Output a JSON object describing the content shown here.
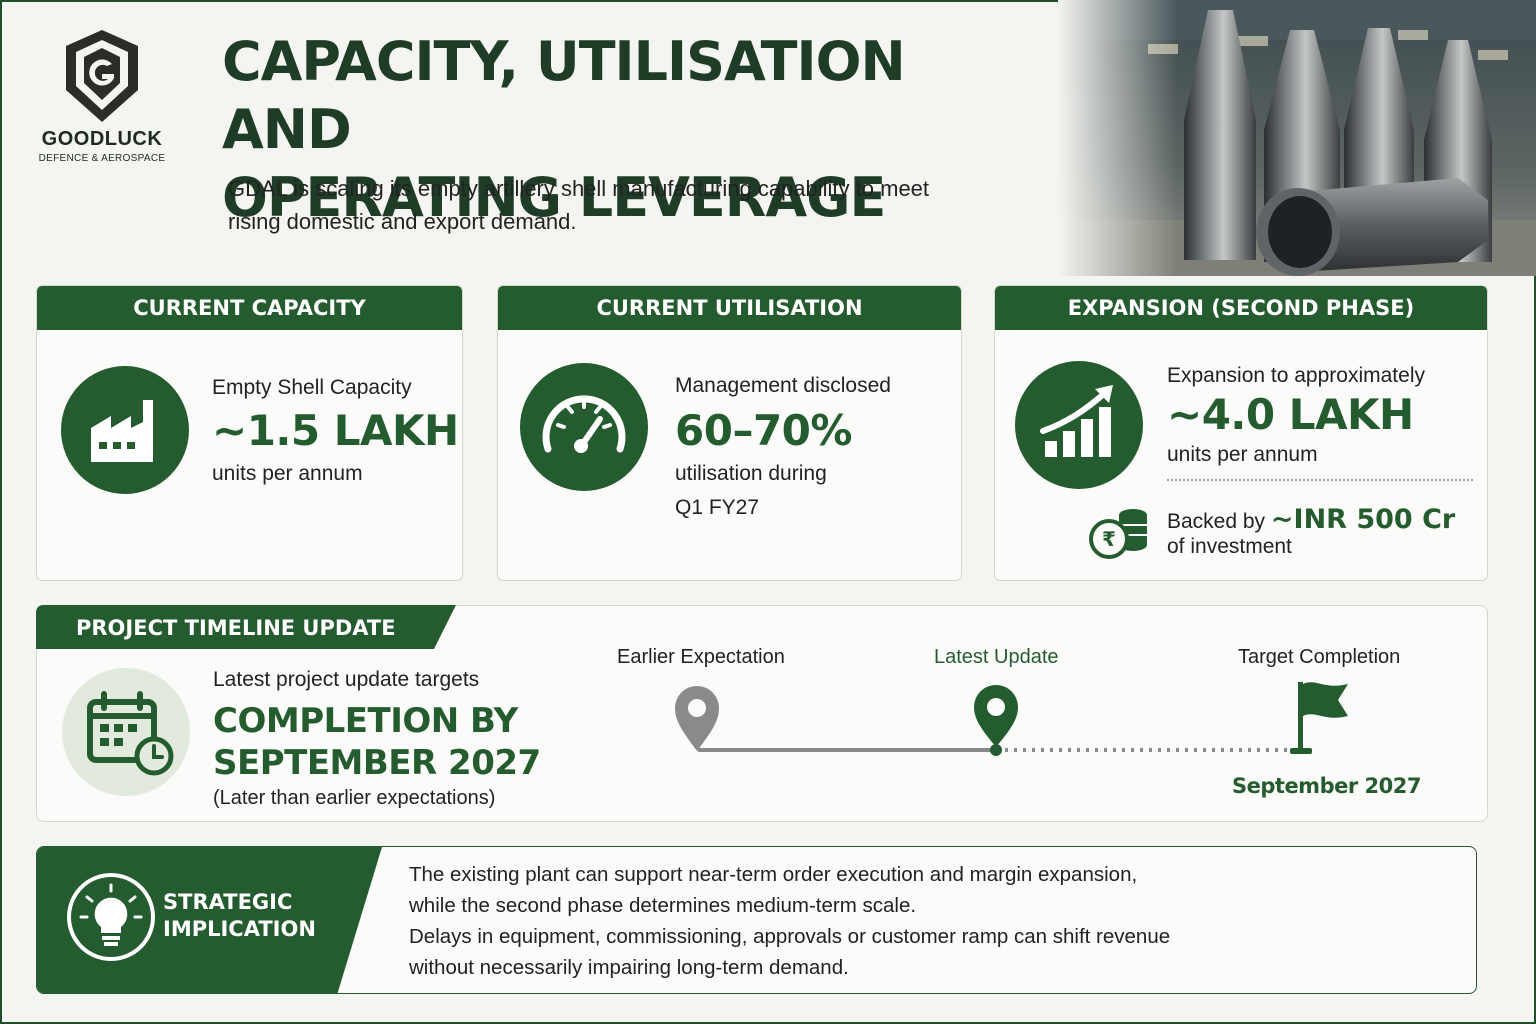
{
  "brand": {
    "name": "GOODLUCK",
    "tagline": "DEFENCE & AEROSPACE",
    "icon": "shield-g-logo"
  },
  "header": {
    "title_line1": "CAPACITY, UTILISATION AND",
    "title_line2": "OPERATING LEVERAGE",
    "intro_line1": "GDAL is scaling its empty artillery shell manufacturing capability to meet",
    "intro_line2": "rising domestic and export demand."
  },
  "cards": {
    "capacity": {
      "title": "CURRENT CAPACITY",
      "icon": "factory-icon",
      "label": "Empty Shell Capacity",
      "value": "~1.5 LAKH",
      "unit": "units per annum"
    },
    "utilisation": {
      "title": "CURRENT UTILISATION",
      "icon": "gauge-icon",
      "label": "Management disclosed",
      "value": "60–70%",
      "detail_line1": "utilisation during",
      "detail_line2": "Q1 FY27"
    },
    "expansion": {
      "title": "EXPANSION (SECOND PHASE)",
      "icon": "growth-chart-icon",
      "label": "Expansion to approximately",
      "value": "~4.0 LAKH",
      "unit": "units per annum",
      "backed_prefix": "Backed by ",
      "backed_value": "~INR 500 Cr",
      "backed_suffix": "of investment",
      "investment_icon": "rupee-coins-icon"
    }
  },
  "timeline": {
    "title": "PROJECT TIMELINE UPDATE",
    "icon": "calendar-clock-icon",
    "label": "Latest project update targets",
    "headline_line1": "COMPLETION BY",
    "headline_line2": "SEPTEMBER 2027",
    "note": "(Later than earlier expectations)",
    "milestones": [
      {
        "label": "Earlier Expectation",
        "icon": "location-pin-grey-icon"
      },
      {
        "label": "Latest Update",
        "icon": "location-pin-green-icon"
      },
      {
        "label": "Target Completion",
        "icon": "flag-icon",
        "date": "September 2027"
      }
    ],
    "colors": {
      "earlier": "#8a8a8a",
      "latest": "#245c30"
    }
  },
  "strategic": {
    "title_line1": "STRATEGIC",
    "title_line2": "IMPLICATION",
    "icon": "lightbulb-icon",
    "text_line1": "The existing plant can support near-term order execution and margin expansion,",
    "text_line2": "while the second phase determines medium-term scale.",
    "text_line3": "Delays in equipment, commissioning, approvals or customer ramp can shift revenue",
    "text_line4": "without necessarily impairing long-term demand."
  },
  "colors": {
    "accent": "#245c30",
    "dark": "#1f3d26",
    "background": "#f4f5f1"
  }
}
